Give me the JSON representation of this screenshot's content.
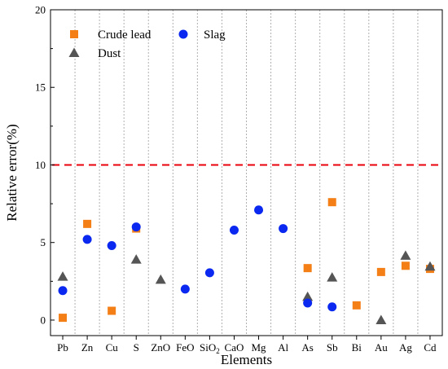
{
  "chart_data": {
    "type": "scatter",
    "title": "",
    "xlabel": "Elements",
    "ylabel": "Relative error(%)",
    "ylim": [
      -1,
      20
    ],
    "yticks": [
      0,
      5,
      10,
      15,
      20
    ],
    "grid": "vertical dotted",
    "legend_position": "top-left",
    "categories": [
      "Pb",
      "Zn",
      "Cu",
      "S",
      "ZnO",
      "FeO",
      "SiO2",
      "CaO",
      "Mg",
      "Al",
      "As",
      "Sb",
      "Bi",
      "Au",
      "Ag",
      "Cd"
    ],
    "reference_line": {
      "y": 10,
      "color": "#e8000b",
      "style": "dashed"
    },
    "series": [
      {
        "name": "Crude lead",
        "marker": "square",
        "color": "#f47f17",
        "values": [
          0.15,
          6.2,
          0.6,
          5.9,
          null,
          null,
          null,
          null,
          null,
          null,
          3.35,
          7.6,
          0.95,
          3.1,
          3.5,
          3.3
        ]
      },
      {
        "name": "Dust",
        "marker": "triangle",
        "color": "#555555",
        "values": [
          2.8,
          null,
          null,
          3.9,
          2.6,
          null,
          null,
          null,
          null,
          null,
          1.5,
          2.75,
          null,
          0.0,
          4.15,
          3.45
        ]
      },
      {
        "name": "Slag",
        "marker": "circle",
        "color": "#0a28f0",
        "values": [
          1.9,
          5.2,
          4.8,
          6.0,
          null,
          2.0,
          3.05,
          5.8,
          7.1,
          5.9,
          1.1,
          0.85,
          null,
          null,
          null,
          null
        ]
      }
    ]
  }
}
